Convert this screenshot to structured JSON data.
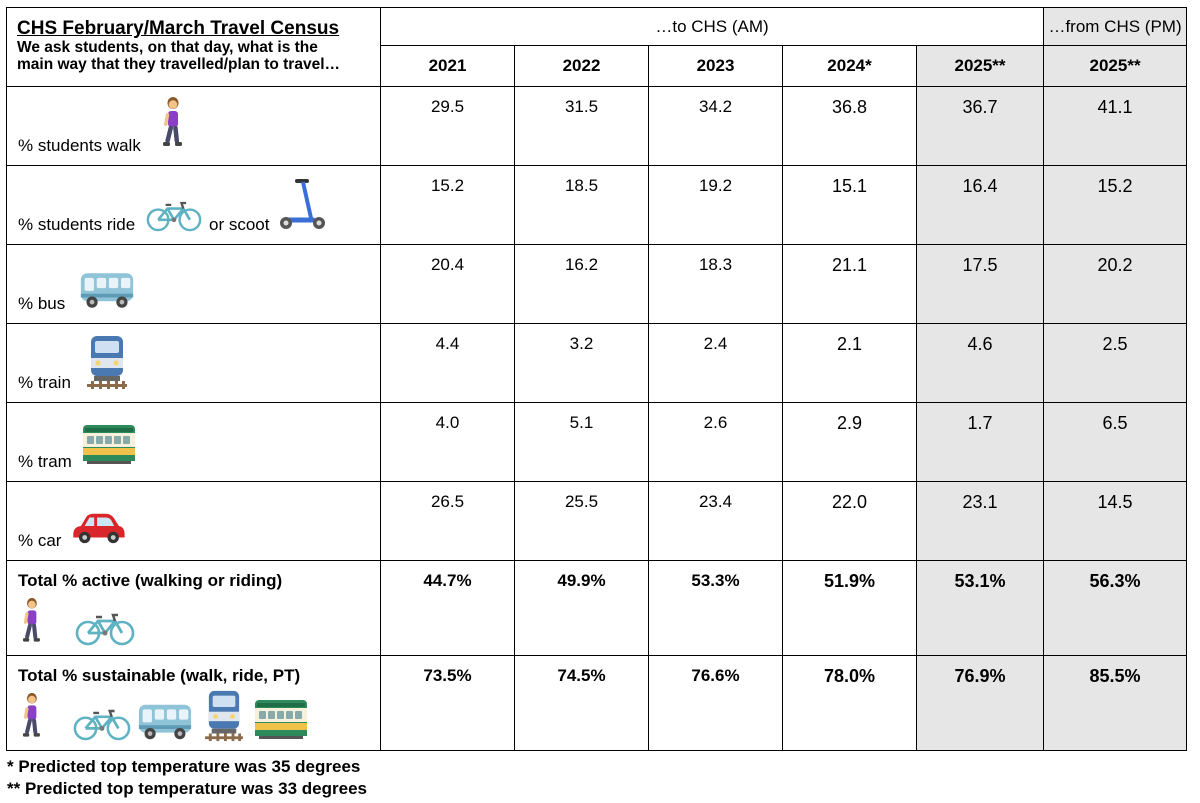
{
  "header": {
    "title": "CHS February/March Travel Census",
    "subtitle_line1": "We ask students, on that day, what is the",
    "subtitle_line2": "main way that they travelled/plan to travel…",
    "group_am": "…to CHS (AM)",
    "group_pm": "…from CHS (PM)",
    "years": [
      "2021",
      "2022",
      "2023",
      "2024*",
      "2025**",
      "2025**"
    ]
  },
  "rows": [
    {
      "label": "% students walk",
      "icons": [
        "walking-woman-icon"
      ],
      "values": [
        "29.5",
        "31.5",
        "34.2",
        "36.8",
        "36.7",
        "41.1"
      ]
    },
    {
      "label": "% students ride",
      "label2": "or scoot",
      "icons": [
        "bicycle-icon",
        "kick-scooter-icon"
      ],
      "values": [
        "15.2",
        "18.5",
        "19.2",
        "15.1",
        "16.4",
        "15.2"
      ]
    },
    {
      "label": "% bus",
      "icons": [
        "bus-icon"
      ],
      "values": [
        "20.4",
        "16.2",
        "18.3",
        "21.1",
        "17.5",
        "20.2"
      ]
    },
    {
      "label": "% train",
      "icons": [
        "train-icon"
      ],
      "values": [
        "4.4",
        "3.2",
        "2.4",
        "2.1",
        "4.6",
        "2.5"
      ]
    },
    {
      "label": "% tram",
      "icons": [
        "tram-car-icon"
      ],
      "values": [
        "4.0",
        "5.1",
        "2.6",
        "2.9",
        "1.7",
        "6.5"
      ]
    },
    {
      "label": "% car",
      "icons": [
        "car-icon"
      ],
      "values": [
        "26.5",
        "25.5",
        "23.4",
        "22.0",
        "23.1",
        "14.5"
      ]
    }
  ],
  "totals": [
    {
      "label": "Total % active (walking or riding)",
      "icons": [
        "walking-woman-icon",
        "bicycle-icon"
      ],
      "values": [
        "44.7%",
        "49.9%",
        "53.3%",
        "51.9%",
        "53.1%",
        "56.3%"
      ]
    },
    {
      "label": "Total % sustainable (walk, ride, PT)",
      "icons": [
        "walking-woman-icon",
        "bicycle-icon",
        "bus-icon",
        "train-icon",
        "tram-car-icon"
      ],
      "values": [
        "73.5%",
        "74.5%",
        "76.6%",
        "78.0%",
        "76.9%",
        "85.5%"
      ]
    }
  ],
  "notes": [
    "* Predicted top temperature was 35 degrees",
    "** Predicted top temperature was 33 degrees"
  ],
  "colors": {
    "shaded_column": "#e6e6e6",
    "walker_shirt": "#8a3fc4",
    "bicycle": "#5fb2c2",
    "scooter": "#3a6fd8",
    "bus": "#8fc3d8",
    "train": "#4a78b0",
    "tram": "#f0c24a",
    "car": "#d8262b"
  }
}
